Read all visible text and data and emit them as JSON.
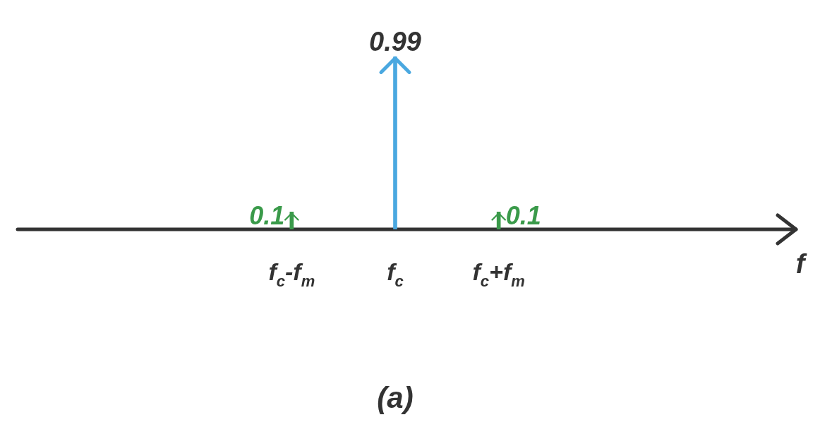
{
  "chart_data": {
    "type": "bar",
    "title": "(a)",
    "annotations": [
      "f"
    ],
    "categories": [
      "f$_{c}$-f$_{m}$",
      "f$_{c}$",
      "f$_{c}$+f$_{m}$"
    ],
    "values": [
      0.1,
      0.99,
      0.1
    ],
    "colors": [
      "#3a9a4a",
      "#4aa8e0",
      "#3a9a4a"
    ],
    "data_labels": true,
    "legend": false
  }
}
